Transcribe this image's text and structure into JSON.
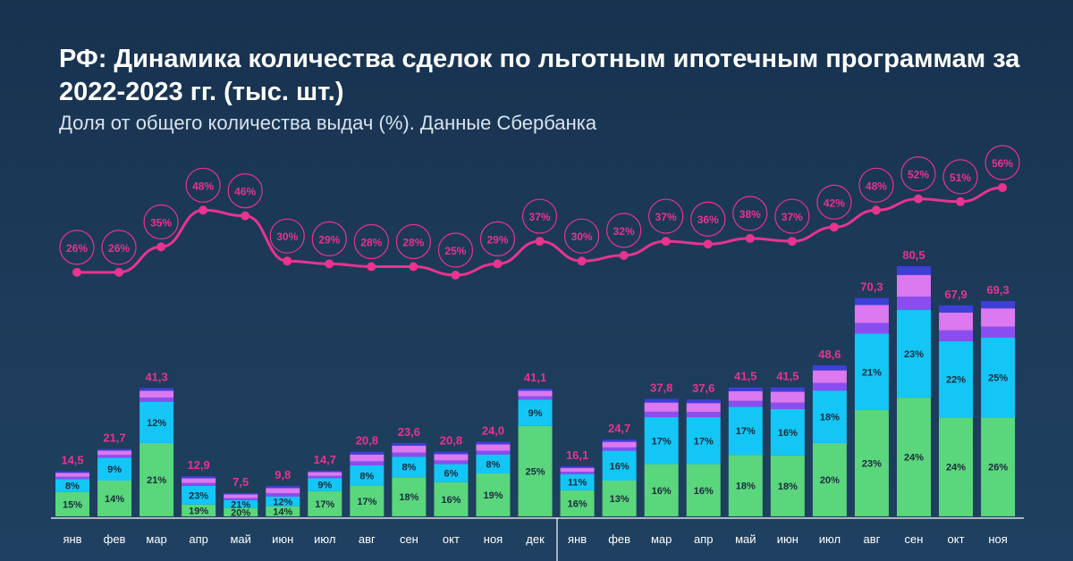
{
  "header": {
    "title": "РФ: Динамика количества сделок по льготным ипотечным программам за 2022-2023 гг. (тыс. шт.)",
    "subtitle": "Доля от общего количества выдач (%). Данные Сбербанка"
  },
  "colors": {
    "green": "#5ad67d",
    "cyan": "#13c6f6",
    "violet": "#8a4ef0",
    "pink": "#dc78f0",
    "navy": "#3d3fd8",
    "line": "#e8348e",
    "label": "#e8348e",
    "axis": "#ffffff"
  },
  "chart_data": {
    "type": "bar",
    "categories": [
      "янв",
      "фев",
      "мар",
      "апр",
      "май",
      "июн",
      "июл",
      "авг",
      "сен",
      "окт",
      "ноя",
      "дек",
      "янв",
      "фев",
      "мар",
      "апр",
      "май",
      "июн",
      "июл",
      "авг",
      "сен",
      "окт",
      "ноя"
    ],
    "totals": [
      "14,5",
      "21,7",
      "41,3",
      "12,9",
      "7,5",
      "9,8",
      "14,7",
      "20,8",
      "23,6",
      "20,8",
      "24,0",
      "41,1",
      "16,1",
      "24,7",
      "37,8",
      "37,6",
      "41,5",
      "41,5",
      "48,6",
      "70,3",
      "80,5",
      "67,9",
      "69,3"
    ],
    "total_values": [
      14.5,
      21.7,
      41.3,
      12.9,
      7.5,
      9.8,
      14.7,
      20.8,
      23.6,
      20.8,
      24.0,
      41.1,
      16.1,
      24.7,
      37.8,
      37.6,
      41.5,
      41.5,
      48.6,
      70.3,
      80.5,
      67.9,
      69.3
    ],
    "series": [
      {
        "values": [
          7.8,
          11.5,
          23.6,
          3.8,
          2.6,
          3.2,
          8.1,
          9.9,
          12.6,
          11.0,
          13.8,
          29.1,
          8.4,
          11.5,
          16.8,
          16.8,
          19.8,
          19.6,
          23.6,
          34.2,
          38.2,
          31.8,
          31.8
        ],
        "labels": [
          "15%",
          "14%",
          "21%",
          "19%",
          "20%",
          "14%",
          "17%",
          "17%",
          "18%",
          "16%",
          "19%",
          "25%",
          "16%",
          "13%",
          "16%",
          "16%",
          "18%",
          "18%",
          "20%",
          "23%",
          "24%",
          "24%",
          "26%"
        ]
      },
      {
        "values": [
          4.2,
          7.4,
          13.3,
          6.0,
          2.6,
          3.2,
          4.2,
          6.5,
          6.6,
          5.8,
          6.1,
          8.5,
          5.2,
          9.6,
          15.1,
          15.1,
          15.5,
          14.9,
          16.9,
          24.6,
          28.3,
          24.6,
          25.7
        ],
        "labels": [
          "8%",
          "9%",
          "12%",
          "23%",
          "21%",
          "12%",
          "9%",
          "8%",
          "8%",
          "6%",
          "8%",
          "9%",
          "11%",
          "16%",
          "17%",
          "17%",
          "17%",
          "16%",
          "18%",
          "21%",
          "23%",
          "22%",
          "25%"
        ]
      }
    ],
    "share_x": [
      "янв",
      "фев",
      "мар",
      "апр",
      "май",
      "июн",
      "июл",
      "авг",
      "сен",
      "окт",
      "ноя",
      "дек",
      "янв",
      "фев",
      "мар",
      "апр",
      "май",
      "июн",
      "июл",
      "авг",
      "сен",
      "окт",
      "ноя"
    ],
    "share": [
      26,
      26,
      35,
      48,
      46,
      30,
      29,
      28,
      28,
      25,
      29,
      37,
      30,
      32,
      37,
      36,
      38,
      37,
      42,
      48,
      52,
      51,
      56
    ],
    "share_labels": [
      "26%",
      "26%",
      "35%",
      "48%",
      "46%",
      "30%",
      "29%",
      "28%",
      "28%",
      "25%",
      "29%",
      "37%",
      "30%",
      "32%",
      "37%",
      "36%",
      "38%",
      "37%",
      "42%",
      "48%",
      "52%",
      "51%",
      "56%"
    ],
    "ylim": [
      0,
      80.5
    ],
    "share_ylim": [
      25,
      56
    ],
    "legend": "none",
    "grid": false
  }
}
